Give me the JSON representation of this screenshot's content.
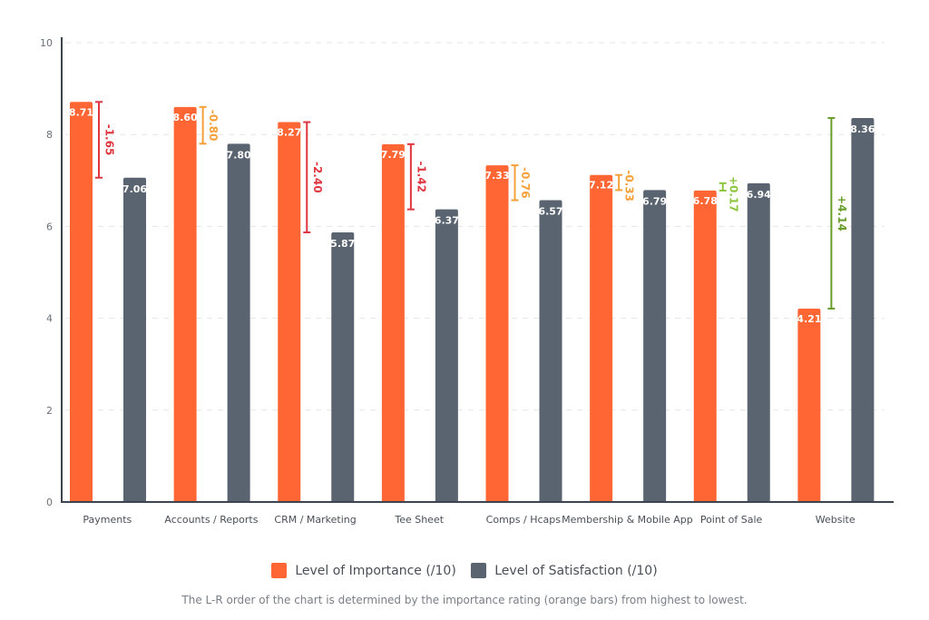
{
  "chart_data": {
    "type": "bar",
    "title": "",
    "xlabel": "",
    "ylabel": "",
    "ylim": [
      0,
      10
    ],
    "yticks": [
      "0",
      "2",
      "4",
      "6",
      "8",
      "10"
    ],
    "grid": true,
    "legend_position": "bottom-center",
    "categories": [
      "Payments",
      "Accounts / Reports",
      "CRM / Marketing",
      "Tee Sheet",
      "Comps / Hcaps",
      "Membership & Mobile App",
      "Point of Sale",
      "Website"
    ],
    "series": [
      {
        "name": "Level of Importance (/10)",
        "color": "#ff6633",
        "values": [
          8.71,
          8.6,
          8.27,
          7.79,
          7.33,
          7.12,
          6.78,
          4.21
        ],
        "labels": [
          "8.71",
          "8.60",
          "8.27",
          "7.79",
          "7.33",
          "7.12",
          "6.78",
          "4.21"
        ]
      },
      {
        "name": "Level of Satisfaction (/10)",
        "color": "#5a6470",
        "values": [
          7.06,
          7.8,
          5.87,
          6.37,
          6.57,
          6.79,
          6.94,
          8.36
        ],
        "labels": [
          "7.06",
          "7.80",
          "5.87",
          "6.37",
          "6.57",
          "6.79",
          "6.94",
          "8.36"
        ]
      }
    ],
    "annotations": [
      {
        "category": "Payments",
        "text": "-1.65",
        "color": "#e0363f"
      },
      {
        "category": "Accounts / Reports",
        "text": "-0.80",
        "color": "#f5a038"
      },
      {
        "category": "CRM / Marketing",
        "text": "-2.40",
        "color": "#e0363f"
      },
      {
        "category": "Tee Sheet",
        "text": "-1.42",
        "color": "#e0363f"
      },
      {
        "category": "Comps / Hcaps",
        "text": "-0.76",
        "color": "#f5a038"
      },
      {
        "category": "Membership & Mobile App",
        "text": "-0.33",
        "color": "#f5a038"
      },
      {
        "category": "Point of Sale",
        "text": "+0.17",
        "color": "#8cc63f"
      },
      {
        "category": "Website",
        "text": "+4.14",
        "color": "#6a9e2c"
      }
    ]
  },
  "legend": {
    "importance": "Level of Importance (/10)",
    "satisfaction": "Level of Satisfaction (/10)",
    "importance_color": "#ff6633",
    "satisfaction_color": "#5a6470"
  },
  "footnote": "The L-R order of the chart is determined by the importance rating (orange bars) from highest to lowest."
}
